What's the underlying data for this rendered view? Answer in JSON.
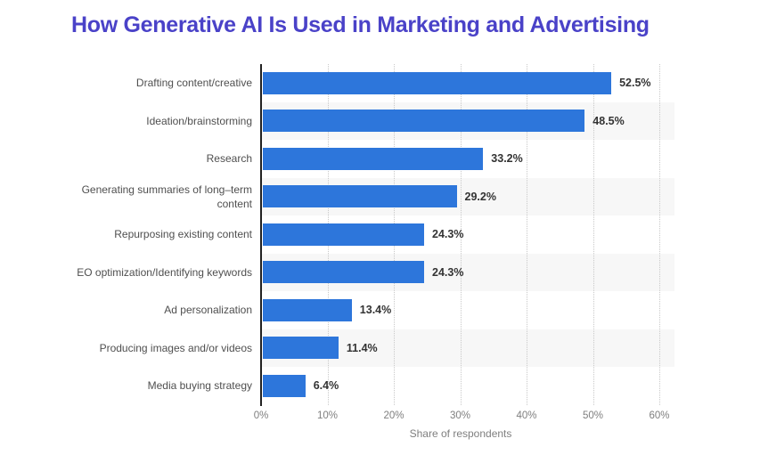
{
  "title": {
    "text": "How Generative AI Is Used in Marketing and Advertising"
  },
  "colors": {
    "title": "#4a42c8",
    "bar": "#2d76db",
    "band": "#f7f7f7",
    "gridline": "#c9c9c9",
    "axis_line": "#222222",
    "category_label": "#4f4f4f",
    "value_label": "#333333",
    "tick_label": "#7f7f7f"
  },
  "chart_data": {
    "type": "bar",
    "orientation": "horizontal",
    "title": "How Generative AI Is Used in Marketing and Advertising",
    "categories": [
      "Drafting content/creative",
      "Ideation/brainstorming",
      "Research",
      "Generating summaries of long–term content",
      "Repurposing existing content",
      "EO optimization/Identifying keywords",
      "Ad personalization",
      "Producing images and/or videos",
      "Media buying strategy"
    ],
    "values": [
      52.5,
      48.5,
      33.2,
      29.2,
      24.3,
      24.3,
      13.4,
      11.4,
      6.4
    ],
    "value_labels": [
      "52.5%",
      "48.5%",
      "33.2%",
      "29.2%",
      "24.3%",
      "24.3%",
      "13.4%",
      "11.4%",
      "6.4%"
    ],
    "xlabel": "Share of respondents",
    "ylabel": "",
    "xlim": [
      0,
      60
    ],
    "x_ticks": [
      "0%",
      "10%",
      "20%",
      "30%",
      "40%",
      "50%",
      "60%"
    ],
    "x_tick_values": [
      0,
      10,
      20,
      30,
      40,
      50,
      60
    ],
    "grid": "vertical-dotted",
    "legend": "none",
    "row_banding": "alternate-even-rows-gray"
  }
}
